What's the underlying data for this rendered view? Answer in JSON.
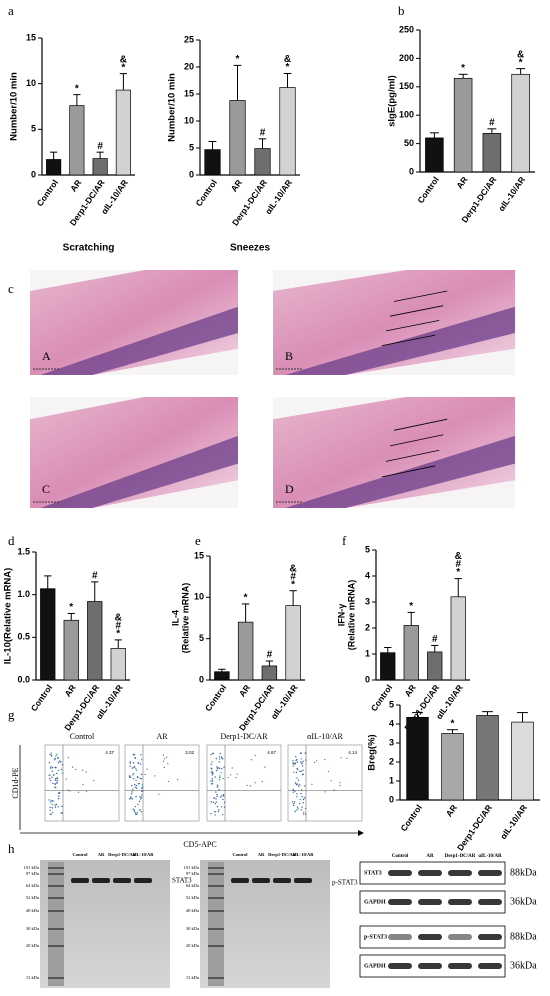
{
  "panel_labels": [
    "a",
    "b",
    "c",
    "d",
    "e",
    "f",
    "g",
    "h"
  ],
  "chart_data": [
    {
      "type": "bar",
      "ylabel": "Number/10 min",
      "xlabel": "Scratching",
      "categories": [
        "Control",
        "AR",
        "Derp1-DC/AR",
        "αIL-10/AR"
      ],
      "values": [
        1.7,
        7.6,
        1.8,
        9.3
      ],
      "errors": [
        0.8,
        1.2,
        0.7,
        1.8
      ],
      "colors": [
        "#111111",
        "#9a9a9a",
        "#6e6e6e",
        "#d2d2d2"
      ],
      "annotations": [
        [],
        [
          "*"
        ],
        [
          "#"
        ],
        [
          "&",
          "*"
        ]
      ],
      "ylim": [
        0,
        15
      ],
      "yticks": [
        0,
        5,
        10,
        15
      ]
    },
    {
      "type": "bar",
      "ylabel": "Number/10 min",
      "xlabel": "Sneezes",
      "categories": [
        "Control",
        "AR",
        "Derp1-DC/AR",
        "αIL-10/AR"
      ],
      "values": [
        4.7,
        13.8,
        4.9,
        16.2
      ],
      "errors": [
        1.5,
        6.5,
        1.8,
        2.6
      ],
      "colors": [
        "#111111",
        "#9a9a9a",
        "#6e6e6e",
        "#d2d2d2"
      ],
      "annotations": [
        [],
        [
          "*"
        ],
        [
          "#"
        ],
        [
          "&",
          "*"
        ]
      ],
      "ylim": [
        0,
        25
      ],
      "yticks": [
        0,
        5,
        10,
        15,
        20,
        25
      ]
    },
    {
      "type": "bar",
      "ylabel": "sIgE(pg/ml)",
      "categories": [
        "Control",
        "AR",
        "Derp1-DC/AR",
        "αIL-10/AR"
      ],
      "values": [
        60,
        165,
        68,
        172
      ],
      "errors": [
        9,
        7,
        8,
        10
      ],
      "colors": [
        "#111111",
        "#9a9a9a",
        "#6e6e6e",
        "#d2d2d2"
      ],
      "annotations": [
        [],
        [
          "*"
        ],
        [
          "#"
        ],
        [
          "&",
          "*"
        ]
      ],
      "ylim": [
        0,
        250
      ],
      "yticks": [
        0,
        50,
        100,
        150,
        200,
        250
      ]
    },
    {
      "type": "bar",
      "ylabel": "IL-10(Relative mRNA)",
      "categories": [
        "Control",
        "AR",
        "Derp1-DC/AR",
        "αIL-10/AR"
      ],
      "values": [
        1.07,
        0.7,
        0.92,
        0.37
      ],
      "errors": [
        0.15,
        0.08,
        0.23,
        0.1
      ],
      "colors": [
        "#111111",
        "#9a9a9a",
        "#6e6e6e",
        "#d2d2d2"
      ],
      "annotations": [
        [],
        [
          "*"
        ],
        [
          "#"
        ],
        [
          "&",
          "#",
          "*"
        ]
      ],
      "ylim": [
        0,
        1.5
      ],
      "yticks": [
        {
          "value": 0,
          "label": "0.0"
        },
        {
          "value": 0.5,
          "label": "0.5"
        },
        {
          "value": 1,
          "label": "1.0"
        },
        {
          "value": 1.5,
          "label": "1.5"
        }
      ]
    },
    {
      "type": "bar",
      "ylabel": [
        "IL-4",
        "(Relative mRNA)"
      ],
      "categories": [
        "Control",
        "AR",
        "Derp1-DC/AR",
        "αIL-10/AR"
      ],
      "values": [
        1.0,
        7.0,
        1.7,
        9.0
      ],
      "errors": [
        0.3,
        2.2,
        0.6,
        1.8
      ],
      "colors": [
        "#111111",
        "#9a9a9a",
        "#6e6e6e",
        "#d2d2d2"
      ],
      "annotations": [
        [],
        [
          "*"
        ],
        [
          "#"
        ],
        [
          "&",
          "#",
          "*"
        ]
      ],
      "ylim": [
        0,
        15
      ],
      "yticks": [
        0,
        5,
        10,
        15
      ]
    },
    {
      "type": "bar",
      "ylabel": [
        "IFN-γ",
        "(Relative mRNA)"
      ],
      "categories": [
        "Control",
        "AR",
        "Derp1-DC/AR",
        "αIL-10/AR"
      ],
      "values": [
        1.05,
        2.1,
        1.08,
        3.2
      ],
      "errors": [
        0.2,
        0.5,
        0.25,
        0.7
      ],
      "colors": [
        "#111111",
        "#9a9a9a",
        "#6e6e6e",
        "#d2d2d2"
      ],
      "annotations": [
        [],
        [
          "*"
        ],
        [
          "#"
        ],
        [
          "&",
          "#",
          "*"
        ]
      ],
      "ylim": [
        0,
        5
      ],
      "yticks": [
        0,
        1,
        2,
        3,
        4,
        5
      ]
    },
    {
      "type": "bar",
      "ylabel": "Breg(%)",
      "categories": [
        "Control",
        "AR",
        "Derp1-DC/AR",
        "αIL-10/AR"
      ],
      "values": [
        4.35,
        3.5,
        4.45,
        4.1
      ],
      "errors": [
        0.25,
        0.2,
        0.2,
        0.5
      ],
      "colors": [
        "#111111",
        "#a8a8a8",
        "#777777",
        "#dcdcdc"
      ],
      "annotations": [
        [],
        [
          "*"
        ],
        [],
        []
      ],
      "ylim": [
        0,
        5
      ],
      "yticks": [
        0,
        1,
        2,
        3,
        4,
        5
      ]
    }
  ],
  "histology": {
    "labels": [
      "A",
      "B",
      "C",
      "D"
    ]
  },
  "flow_cytometry": {
    "titles": [
      "Control",
      "AR",
      "Derp1-DC/AR",
      "αIL-10/AR"
    ],
    "gate_values": [
      4.37,
      3.02,
      4.67,
      4.14
    ],
    "ylabel": "CD1d-PE",
    "xlabel": "CD5-APC"
  },
  "western_blot": {
    "lanes": [
      "Control",
      "AR",
      "Derp1-DC/AR",
      "αIL-10/AR"
    ],
    "ladder": [
      "191 kDa",
      "97 kDa",
      "64 kDa",
      "52 kDa",
      "40 kDa",
      "30 kDa",
      "20 kDa",
      "13 kDa"
    ],
    "gel_bands": [
      "STAT3",
      "p-STAT3"
    ],
    "rows": [
      "STAT3",
      "GAPDH",
      "p-STAT3",
      "GAPDH"
    ],
    "sizes": [
      "88kDa",
      "36kDa",
      "88kDa",
      "36kDa"
    ]
  }
}
